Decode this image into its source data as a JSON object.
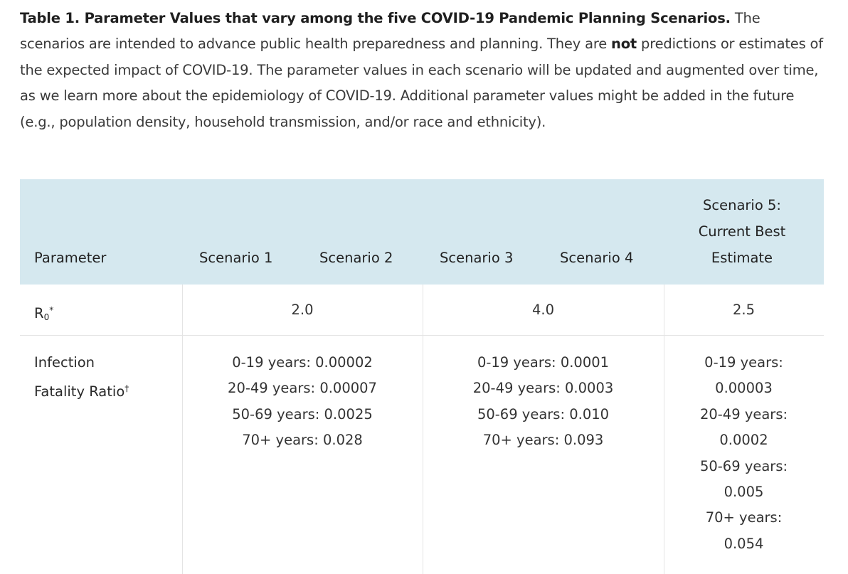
{
  "caption": {
    "title": "Table 1. Parameter Values that vary among the five COVID-19 Pandemic Planning Scenarios.",
    "text_before_bold": " The scenarios are intended to advance public health preparedness and planning.  They are ",
    "bold_word": "not",
    "text_after_bold": " predictions or estimates of the expected impact of COVID-19.  The parameter values in each scenario will be updated and augmented over time, as we learn more about the epidemiology of COVID-19.  Additional parameter values might be added in the future (e.g., population density, household transmission, and/or race and ethnicity)."
  },
  "table": {
    "headers": {
      "parameter": "Parameter",
      "scenario1": "Scenario 1",
      "scenario2": "Scenario 2",
      "scenario3": "Scenario 3",
      "scenario4": "Scenario 4",
      "scenario5_line1": "Scenario 5:",
      "scenario5_line2": "Current Best",
      "scenario5_line3": "Estimate"
    },
    "r0_row": {
      "label_main": "R",
      "label_sub": "0",
      "label_mark": "*",
      "scen_1_2": "2.0",
      "scen_3_4": "4.0",
      "scen_5": "2.5"
    },
    "ifr_row": {
      "label_line1": "Infection",
      "label_line2": "Fatality Ratio",
      "label_mark": "†",
      "scen_1_2": [
        "0-19 years: 0.00002",
        "20-49 years: 0.00007",
        "50-69 years: 0.0025",
        "70+ years: 0.028"
      ],
      "scen_3_4": [
        "0-19 years: 0.0001",
        "20-49 years: 0.0003",
        "50-69 years: 0.010",
        "70+ years: 0.093"
      ],
      "scen_5": [
        "0-19 years:",
        "0.00003",
        "20-49 years:",
        "0.0002",
        "50-69 years:",
        "0.005",
        "70+ years:",
        "0.054"
      ]
    }
  }
}
